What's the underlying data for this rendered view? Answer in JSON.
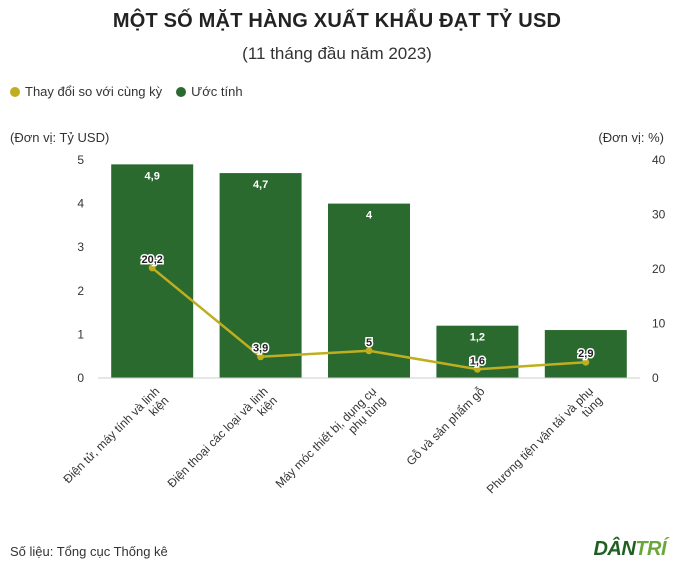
{
  "header": {
    "title": "MỘT SỐ MẶT HÀNG XUẤT KHẨU ĐẠT TỶ USD",
    "subtitle": "(11 tháng đầu năm 2023)"
  },
  "legend": {
    "line_label": "Thay đổi so với cùng kỳ",
    "bar_label": "Ước tính"
  },
  "axes": {
    "left_unit": "(Đơn vị: Tỷ USD)",
    "right_unit": "(Đơn vị: %)"
  },
  "footer": {
    "source": "Số liệu: Tổng cục Thống kê",
    "logo_part1": "DÂN",
    "logo_part2": "TRÍ"
  },
  "colors": {
    "bar": "#2b6a2f",
    "line": "#bfae1f",
    "logo_dark": "#1f5f1f",
    "logo_light": "#6aa83a"
  },
  "chart_data": {
    "type": "bar",
    "title": "MỘT SỐ MẶT HÀNG XUẤT KHẨU ĐẠT TỶ USD",
    "subtitle": "(11 tháng đầu năm 2023)",
    "categories": [
      [
        "Điện tử, máy tính và linh",
        "kiện"
      ],
      [
        "Điện thoại các loại và linh",
        "kiện"
      ],
      [
        "Máy móc thiết bị, dụng cụ",
        "phụ tùng"
      ],
      [
        "Gỗ và sản phẩm gỗ"
      ],
      [
        "Phương tiện vận tải và phụ",
        "tùng"
      ]
    ],
    "series": [
      {
        "name": "Ước tính",
        "type": "bar",
        "axis": "left",
        "values": [
          4.9,
          4.7,
          4,
          1.2,
          1.1
        ],
        "labels": [
          "4,9",
          "4,7",
          "4",
          "1,2",
          ""
        ]
      },
      {
        "name": "Thay đổi so với cùng kỳ",
        "type": "line",
        "axis": "right",
        "values": [
          20.2,
          3.9,
          5,
          1.6,
          2.9
        ],
        "labels": [
          "20,2",
          "3,9",
          "5",
          "1,6",
          "2,9"
        ]
      }
    ],
    "ylim_left": [
      0,
      5
    ],
    "yticks_left": [
      0,
      1,
      2,
      3,
      4,
      5
    ],
    "ylim_right": [
      0,
      40
    ],
    "yticks_right": [
      0,
      10,
      20,
      30,
      40
    ],
    "grid": false,
    "legend_position": "top-left"
  }
}
